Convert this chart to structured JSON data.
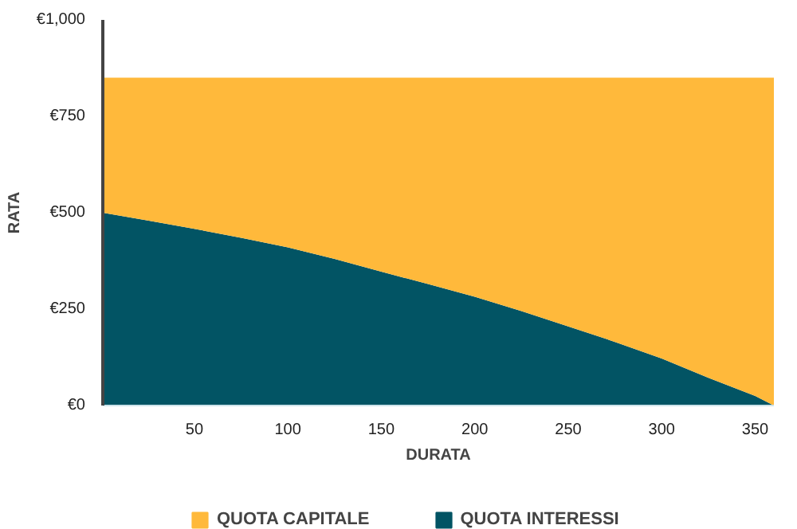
{
  "chart_data": {
    "type": "area",
    "stacked": true,
    "xlabel": "DURATA",
    "ylabel": "RATA",
    "x": [
      1,
      25,
      50,
      75,
      100,
      125,
      150,
      175,
      200,
      225,
      250,
      275,
      300,
      325,
      350,
      360
    ],
    "series": [
      {
        "name": "QUOTA INTERESSI",
        "color": "#025464",
        "values": [
          500,
          480,
          458,
          435,
          410,
          380,
          347,
          315,
          282,
          245,
          205,
          165,
          122,
          72,
          25,
          0
        ]
      },
      {
        "name": "QUOTA CAPITALE",
        "color": "#ffb93b",
        "values": [
          350,
          370,
          392,
          415,
          440,
          470,
          503,
          535,
          568,
          605,
          645,
          685,
          728,
          778,
          825,
          850
        ]
      }
    ],
    "xlim": [
      1,
      360
    ],
    "xticks": [
      50,
      100,
      150,
      200,
      250,
      300,
      350
    ],
    "ylim": [
      0,
      1000
    ],
    "yticks": [
      {
        "value": 0,
        "label": "€0"
      },
      {
        "value": 250,
        "label": "€250"
      },
      {
        "value": 500,
        "label": "€500"
      },
      {
        "value": 750,
        "label": "€750"
      },
      {
        "value": 1000,
        "label": "€1,000"
      }
    ],
    "grid": false,
    "legend": "bottom"
  }
}
